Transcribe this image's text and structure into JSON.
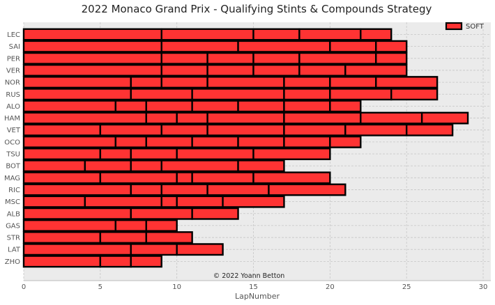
{
  "chart_data": {
    "type": "bar",
    "orientation": "horizontal",
    "stacked": true,
    "title": "2022 Monaco Grand Prix - Qualifying Stints & Compounds Strategy",
    "xlabel": "LapNumber",
    "ylabel": "",
    "xlim": [
      0,
      30.5
    ],
    "xticks": [
      0,
      5,
      10,
      15,
      20,
      25,
      30
    ],
    "grid": true,
    "legend": {
      "position": "top-right",
      "entries": [
        {
          "label": "SOFT",
          "color": "#ff3333"
        }
      ]
    },
    "annotation": "© 2022 Yoann Betton",
    "compound_colors": {
      "SOFT": "#ff3333"
    },
    "drivers": [
      {
        "driver": "LEC",
        "stints": [
          {
            "compound": "SOFT",
            "laps": [
              9,
              6,
              3,
              4,
              2
            ]
          }
        ]
      },
      {
        "driver": "SAI",
        "stints": [
          {
            "compound": "SOFT",
            "laps": [
              9,
              5,
              6,
              3,
              2
            ]
          }
        ]
      },
      {
        "driver": "PER",
        "stints": [
          {
            "compound": "SOFT",
            "laps": [
              9,
              3,
              3,
              3,
              5,
              2
            ]
          }
        ]
      },
      {
        "driver": "VER",
        "stints": [
          {
            "compound": "SOFT",
            "laps": [
              9,
              3,
              3,
              3,
              3,
              4
            ]
          }
        ]
      },
      {
        "driver": "NOR",
        "stints": [
          {
            "compound": "SOFT",
            "laps": [
              7,
              2,
              3,
              5,
              3,
              3,
              4
            ]
          }
        ]
      },
      {
        "driver": "RUS",
        "stints": [
          {
            "compound": "SOFT",
            "laps": [
              7,
              4,
              6,
              3,
              4,
              3
            ]
          }
        ]
      },
      {
        "driver": "ALO",
        "stints": [
          {
            "compound": "SOFT",
            "laps": [
              6,
              2,
              3,
              3,
              3,
              3,
              2
            ]
          }
        ]
      },
      {
        "driver": "HAM",
        "stints": [
          {
            "compound": "SOFT",
            "laps": [
              8,
              2,
              2,
              5,
              5,
              4,
              3
            ]
          }
        ]
      },
      {
        "driver": "VET",
        "stints": [
          {
            "compound": "SOFT",
            "laps": [
              5,
              4,
              3,
              5,
              4,
              4,
              3
            ]
          }
        ]
      },
      {
        "driver": "OCO",
        "stints": [
          {
            "compound": "SOFT",
            "laps": [
              6,
              2,
              3,
              3,
              3,
              3,
              2
            ]
          }
        ]
      },
      {
        "driver": "TSU",
        "stints": [
          {
            "compound": "SOFT",
            "laps": [
              5,
              2,
              3,
              5,
              5
            ]
          }
        ]
      },
      {
        "driver": "BOT",
        "stints": [
          {
            "compound": "SOFT",
            "laps": [
              4,
              3,
              2,
              5,
              3
            ]
          }
        ]
      },
      {
        "driver": "MAG",
        "stints": [
          {
            "compound": "SOFT",
            "laps": [
              5,
              5,
              1,
              4,
              5
            ]
          }
        ]
      },
      {
        "driver": "RIC",
        "stints": [
          {
            "compound": "SOFT",
            "laps": [
              7,
              2,
              3,
              4,
              5
            ]
          }
        ]
      },
      {
        "driver": "MSC",
        "stints": [
          {
            "compound": "SOFT",
            "laps": [
              4,
              5,
              1,
              3,
              4
            ]
          }
        ]
      },
      {
        "driver": "ALB",
        "stints": [
          {
            "compound": "SOFT",
            "laps": [
              7,
              4,
              3
            ]
          }
        ]
      },
      {
        "driver": "GAS",
        "stints": [
          {
            "compound": "SOFT",
            "laps": [
              6,
              2,
              2
            ]
          }
        ]
      },
      {
        "driver": "STR",
        "stints": [
          {
            "compound": "SOFT",
            "laps": [
              5,
              3,
              3
            ]
          }
        ]
      },
      {
        "driver": "LAT",
        "stints": [
          {
            "compound": "SOFT",
            "laps": [
              7,
              3,
              3
            ]
          }
        ]
      },
      {
        "driver": "ZHO",
        "stints": [
          {
            "compound": "SOFT",
            "laps": [
              5,
              2,
              2
            ]
          }
        ]
      }
    ]
  }
}
